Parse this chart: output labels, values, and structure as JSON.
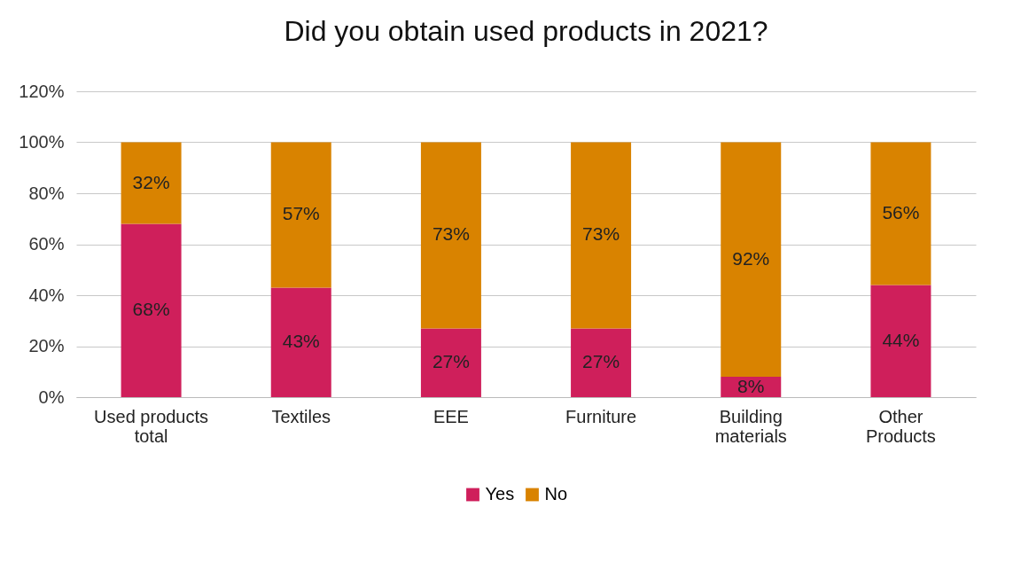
{
  "chart_data": {
    "type": "bar",
    "title": "Did you obtain used products in 2021?",
    "stacked": true,
    "grid": "y",
    "legend": "bottom",
    "categories": [
      "Used products total",
      "Textiles",
      "EEE",
      "Furniture",
      "Building materials",
      "Other Products"
    ],
    "ylim": [
      0,
      120
    ],
    "yticks": [
      {
        "value": 0,
        "label": "0%"
      },
      {
        "value": 20,
        "label": "20%"
      },
      {
        "value": 40,
        "label": "40%"
      },
      {
        "value": 60,
        "label": "60%"
      },
      {
        "value": 80,
        "label": "80%"
      },
      {
        "value": 100,
        "label": "100%"
      },
      {
        "value": 120,
        "label": "120%"
      }
    ],
    "series": [
      {
        "name": "Yes",
        "color": "#cf1f5b",
        "values": [
          68,
          43,
          27,
          27,
          8,
          44
        ],
        "value_labels": [
          "68%",
          "43%",
          "27%",
          "27%",
          "8%",
          "44%"
        ]
      },
      {
        "name": "No",
        "color": "#d98300",
        "values": [
          32,
          57,
          73,
          73,
          92,
          56
        ],
        "value_labels": [
          "32%",
          "57%",
          "73%",
          "73%",
          "92%",
          "56%"
        ]
      }
    ]
  }
}
